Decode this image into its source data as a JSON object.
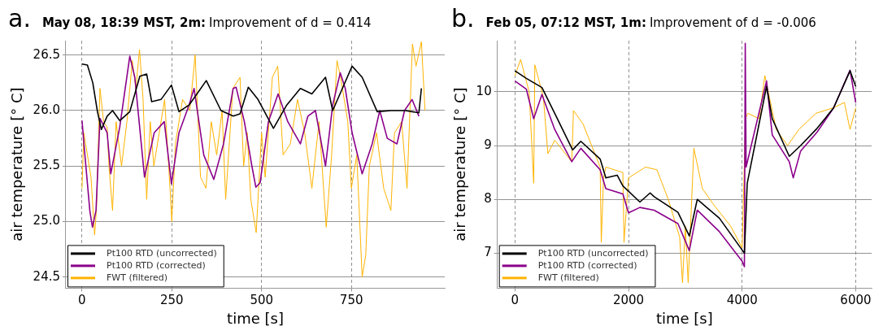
{
  "chart_data": [
    {
      "type": "line",
      "title": "May 08, 18:39 MST, 2m:",
      "subtitle": "Improvement of d = 0.414",
      "annotations": [
        "a."
      ],
      "xlabel": "time [s]",
      "ylabel": "air temperature [° C]",
      "xlim": [
        -45,
        1010
      ],
      "xticks": [
        0,
        250,
        500,
        750
      ],
      "ylim": [
        24.4,
        26.63
      ],
      "yticks": [
        24.5,
        {
          "value": 25,
          "label": "25.0"
        },
        25.5,
        {
          "value": 26,
          "label": "26.0"
        },
        26.5
      ],
      "grid": true,
      "legend": "bottom left",
      "line_style": "solid",
      "series": [
        {
          "name": "Pt100 RTD (uncorrected)",
          "color": "#000000",
          "x": [
            0,
            15,
            30,
            43,
            54,
            70,
            85,
            105,
            133,
            161,
            180,
            194,
            220,
            249,
            270,
            298,
            320,
            346,
            387,
            421,
            440,
            463,
            490,
            533,
            570,
            608,
            640,
            678,
            698,
            725,
            752,
            780,
            822,
            860,
            900,
            938,
            945
          ],
          "values": [
            26.42,
            26.41,
            26.25,
            25.99,
            25.83,
            25.95,
            26.0,
            25.91,
            25.99,
            26.31,
            26.33,
            26.08,
            26.1,
            26.23,
            25.99,
            26.05,
            26.15,
            26.27,
            26.0,
            25.95,
            25.97,
            26.21,
            26.1,
            25.84,
            26.05,
            26.2,
            26.15,
            26.3,
            26.0,
            26.2,
            26.4,
            26.3,
            25.99,
            26.0,
            26.0,
            25.98,
            26.2
          ]
        },
        {
          "name": "Pt100 RTD (corrected)",
          "color": "#8b008b",
          "x": [
            0,
            8,
            22,
            29,
            39,
            50,
            70,
            80,
            105,
            133,
            147,
            174,
            201,
            229,
            249,
            270,
            298,
            312,
            339,
            367,
            394,
            421,
            429,
            452,
            473,
            484,
            496,
            519,
            546,
            573,
            608,
            629,
            650,
            678,
            698,
            719,
            733,
            752,
            780,
            808,
            829,
            850,
            877,
            898,
            919,
            938
          ],
          "values": [
            25.91,
            25.6,
            25.09,
            24.95,
            25.1,
            25.93,
            25.8,
            25.43,
            25.85,
            26.49,
            26.3,
            25.4,
            25.8,
            25.9,
            25.34,
            25.8,
            26.05,
            26.2,
            25.6,
            25.38,
            25.7,
            26.2,
            26.21,
            25.9,
            25.5,
            25.31,
            25.35,
            25.9,
            26.15,
            25.9,
            25.7,
            25.95,
            26.0,
            25.5,
            26.05,
            26.34,
            26.2,
            25.8,
            25.43,
            25.7,
            26.0,
            25.75,
            25.7,
            26.0,
            26.1,
            25.95
          ]
        },
        {
          "name": "FWT (filtered)",
          "color": "#ffb300",
          "x": [
            0,
            5,
            15,
            25,
            35,
            40,
            50,
            60,
            70,
            75,
            85,
            95,
            110,
            125,
            140,
            150,
            160,
            170,
            180,
            190,
            200,
            215,
            230,
            245,
            250,
            260,
            280,
            300,
            315,
            330,
            345,
            360,
            375,
            390,
            400,
            420,
            440,
            450,
            460,
            470,
            485,
            500,
            510,
            530,
            545,
            560,
            580,
            600,
            620,
            640,
            660,
            680,
            695,
            710,
            720,
            740,
            750,
            765,
            780,
            790,
            800,
            820,
            840,
            860,
            870,
            890,
            905,
            920,
            930,
            945,
            955
          ],
          "values": [
            25.3,
            25.8,
            25.6,
            25.4,
            24.88,
            25.1,
            26.2,
            25.9,
            25.85,
            25.5,
            25.1,
            25.9,
            25.5,
            25.9,
            26.45,
            26.2,
            26.55,
            26.1,
            25.2,
            25.9,
            25.5,
            25.8,
            26.1,
            25.3,
            25.0,
            25.7,
            26.1,
            26.0,
            26.5,
            25.4,
            25.3,
            25.9,
            25.6,
            26.0,
            25.2,
            26.2,
            26.3,
            25.5,
            25.8,
            25.2,
            24.9,
            25.8,
            25.4,
            26.3,
            26.4,
            25.6,
            25.7,
            26.1,
            25.8,
            25.3,
            25.9,
            24.95,
            25.6,
            26.45,
            26.3,
            25.9,
            25.3,
            25.6,
            24.5,
            24.7,
            25.5,
            25.8,
            25.3,
            25.1,
            25.8,
            25.9,
            25.3,
            26.6,
            26.4,
            26.62,
            26.0
          ]
        }
      ]
    },
    {
      "type": "line",
      "title": "Feb 05, 07:12 MST, 1m:",
      "subtitle": "Improvement of d = -0.006",
      "annotations": [
        "b."
      ],
      "xlabel": "time [s]",
      "ylabel": "air temperature [° C]",
      "xlim": [
        -310,
        6280
      ],
      "xticks": [
        0,
        2000,
        4000,
        6000
      ],
      "ylim": [
        6.35,
        10.95
      ],
      "yticks": [
        7,
        8,
        9,
        10
      ],
      "grid": true,
      "legend": "bottom left",
      "line_style": "solid",
      "series": [
        {
          "name": "Pt100 RTD (uncorrected)",
          "color": "#000000",
          "x": [
            0,
            200,
            475,
            700,
            1015,
            1160,
            1500,
            1600,
            1800,
            1900,
            2200,
            2380,
            2450,
            2870,
            3070,
            3210,
            3600,
            4040,
            4090,
            4430,
            4530,
            4830,
            5030,
            5320,
            5610,
            5900,
            6000
          ],
          "values": [
            10.39,
            10.25,
            10.08,
            9.6,
            8.92,
            9.08,
            8.75,
            8.4,
            8.45,
            8.25,
            7.95,
            8.12,
            8.05,
            7.76,
            7.32,
            8.0,
            7.65,
            7.0,
            8.3,
            10.1,
            9.5,
            8.8,
            9.0,
            9.32,
            9.7,
            10.39,
            10.1
          ]
        },
        {
          "name": "Pt100 RTD (corrected)",
          "color": "#8b008b",
          "x": [
            0,
            200,
            330,
            475,
            700,
            1000,
            1160,
            1500,
            1600,
            1900,
            2000,
            2200,
            2450,
            2870,
            3070,
            3210,
            3600,
            4000,
            4040,
            4055,
            4070,
            4430,
            4530,
            4830,
            4900,
            5030,
            5320,
            5610,
            5900,
            6000
          ],
          "values": [
            10.2,
            10.05,
            9.5,
            9.95,
            9.3,
            8.7,
            8.95,
            8.55,
            8.2,
            8.1,
            7.75,
            7.85,
            7.8,
            7.55,
            7.05,
            7.8,
            7.4,
            6.85,
            6.75,
            10.9,
            8.6,
            10.2,
            9.2,
            8.7,
            8.4,
            8.9,
            9.25,
            9.7,
            10.4,
            9.8
          ]
        },
        {
          "name": "FWT (filtered)",
          "color": "#ffb300",
          "x": [
            0,
            100,
            250,
            330,
            350,
            500,
            580,
            700,
            1000,
            1030,
            1200,
            1500,
            1520,
            1560,
            1600,
            1900,
            1920,
            2000,
            2300,
            2500,
            2700,
            2900,
            2950,
            3000,
            3050,
            3150,
            3300,
            3500,
            3800,
            4000,
            4060,
            4100,
            4300,
            4400,
            4600,
            4800,
            5000,
            5300,
            5600,
            5800,
            5900,
            6000
          ],
          "values": [
            10.3,
            10.6,
            10.0,
            8.3,
            10.5,
            9.9,
            8.85,
            9.1,
            8.7,
            9.65,
            9.4,
            8.6,
            7.2,
            8.4,
            8.6,
            8.5,
            7.2,
            8.4,
            8.6,
            8.55,
            8.0,
            7.3,
            6.45,
            7.5,
            6.45,
            8.95,
            8.2,
            7.9,
            7.5,
            7.1,
            9.5,
            9.6,
            9.5,
            10.3,
            9.3,
            9.0,
            9.3,
            9.6,
            9.7,
            9.8,
            9.3,
            9.7
          ]
        }
      ]
    }
  ]
}
